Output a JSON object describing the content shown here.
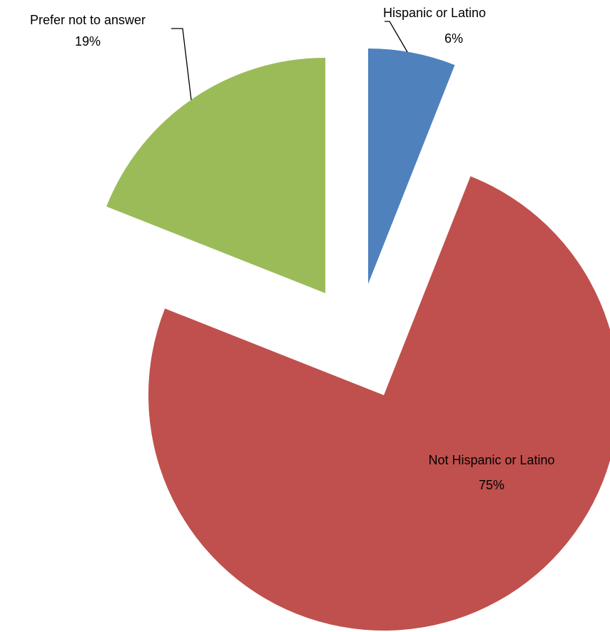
{
  "chart_data": {
    "type": "pie",
    "title": "",
    "slices": [
      {
        "label": "Hispanic or Latino",
        "value": 6,
        "value_label": "6%",
        "color": "#4F81BD",
        "exploded": true
      },
      {
        "label": "Not Hispanic or Latino",
        "value": 75,
        "value_label": "75%",
        "color": "#C0504D",
        "exploded": true
      },
      {
        "label": "Prefer not to answer",
        "value": 19,
        "value_label": "19%",
        "color": "#9BBB59",
        "exploded": true
      }
    ],
    "start_angle_deg": 0,
    "direction": "clockwise",
    "legend": "none",
    "data_labels": "category-and-percent"
  }
}
